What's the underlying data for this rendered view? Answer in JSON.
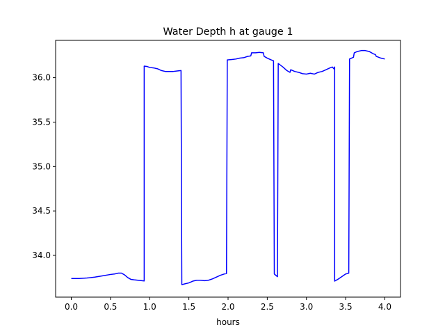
{
  "chart_data": {
    "type": "line",
    "title": "Water Depth h at gauge 1",
    "xlabel": "hours",
    "ylabel": "",
    "xlim": [
      -0.2,
      4.2
    ],
    "ylim": [
      33.53,
      36.42
    ],
    "xticks": [
      0.0,
      0.5,
      1.0,
      1.5,
      2.0,
      2.5,
      3.0,
      3.5,
      4.0
    ],
    "xtick_labels": [
      "0.0",
      "0.5",
      "1.0",
      "1.5",
      "2.0",
      "2.5",
      "3.0",
      "3.5",
      "4.0"
    ],
    "yticks": [
      34.0,
      34.5,
      35.0,
      35.5,
      36.0
    ],
    "ytick_labels": [
      "34.0",
      "34.5",
      "35.0",
      "35.5",
      "36.0"
    ],
    "grid": false,
    "legend": "none",
    "series": [
      {
        "color": "#0000ff",
        "x": [
          0.0,
          0.1,
          0.2,
          0.3,
          0.4,
          0.5,
          0.55,
          0.6,
          0.64,
          0.68,
          0.72,
          0.76,
          0.8,
          0.85,
          0.9,
          0.93,
          0.93,
          0.97,
          1.0,
          1.05,
          1.1,
          1.15,
          1.2,
          1.3,
          1.35,
          1.4,
          1.41,
          1.45,
          1.5,
          1.55,
          1.6,
          1.65,
          1.7,
          1.75,
          1.8,
          1.85,
          1.9,
          1.95,
          1.98,
          1.99,
          2.05,
          2.1,
          2.15,
          2.2,
          2.25,
          2.29,
          2.3,
          2.35,
          2.4,
          2.45,
          2.46,
          2.5,
          2.55,
          2.58,
          2.59,
          2.63,
          2.64,
          2.7,
          2.75,
          2.79,
          2.8,
          2.85,
          2.9,
          2.95,
          3.0,
          3.05,
          3.1,
          3.15,
          3.2,
          3.25,
          3.3,
          3.33,
          3.35,
          3.36,
          3.36,
          3.4,
          3.45,
          3.5,
          3.54,
          3.55,
          3.6,
          3.61,
          3.65,
          3.7,
          3.75,
          3.8,
          3.85,
          3.88,
          3.89,
          3.95,
          4.0
        ],
        "y": [
          33.74,
          33.74,
          33.745,
          33.755,
          33.77,
          33.785,
          33.79,
          33.8,
          33.8,
          33.78,
          33.75,
          33.73,
          33.725,
          33.72,
          33.715,
          33.712,
          36.13,
          36.125,
          36.115,
          36.11,
          36.1,
          36.08,
          36.07,
          36.07,
          36.075,
          36.08,
          33.67,
          33.68,
          33.69,
          33.71,
          33.72,
          33.72,
          33.715,
          33.72,
          33.735,
          33.755,
          33.775,
          33.79,
          33.795,
          36.2,
          36.205,
          36.21,
          36.22,
          36.225,
          36.24,
          36.245,
          36.28,
          36.28,
          36.285,
          36.28,
          36.24,
          36.22,
          36.2,
          36.19,
          33.79,
          33.76,
          36.16,
          36.12,
          36.08,
          36.06,
          36.09,
          36.07,
          36.06,
          36.045,
          36.04,
          36.05,
          36.04,
          36.06,
          36.07,
          36.09,
          36.11,
          36.12,
          36.1,
          36.12,
          33.71,
          33.73,
          33.76,
          33.79,
          33.8,
          36.21,
          36.23,
          36.28,
          36.295,
          36.305,
          36.305,
          36.295,
          36.27,
          36.26,
          36.24,
          36.22,
          36.21
        ]
      }
    ]
  }
}
